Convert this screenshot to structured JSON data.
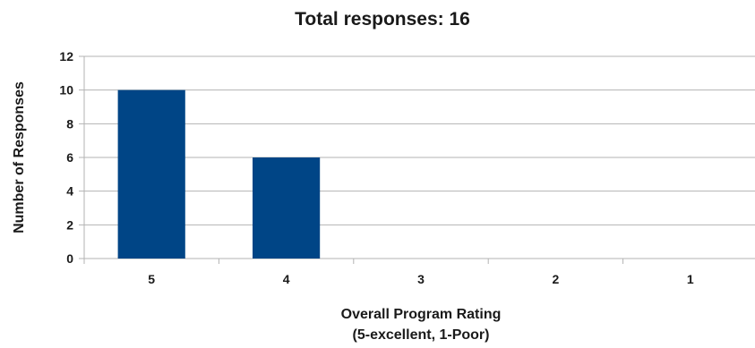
{
  "chart_data": {
    "type": "bar",
    "title": "Total responses: 16",
    "categories": [
      "5",
      "4",
      "3",
      "2",
      "1"
    ],
    "values": [
      10,
      6,
      0,
      0,
      0
    ],
    "xlabel_lines": [
      "Overall Program Rating",
      "(5-excellent, 1-Poor)"
    ],
    "ylabel": "Number of Responses",
    "ylim": [
      0,
      12
    ],
    "yticks": [
      0,
      2,
      4,
      6,
      8,
      10,
      12
    ],
    "grid": true,
    "bar_color": "#004586"
  }
}
